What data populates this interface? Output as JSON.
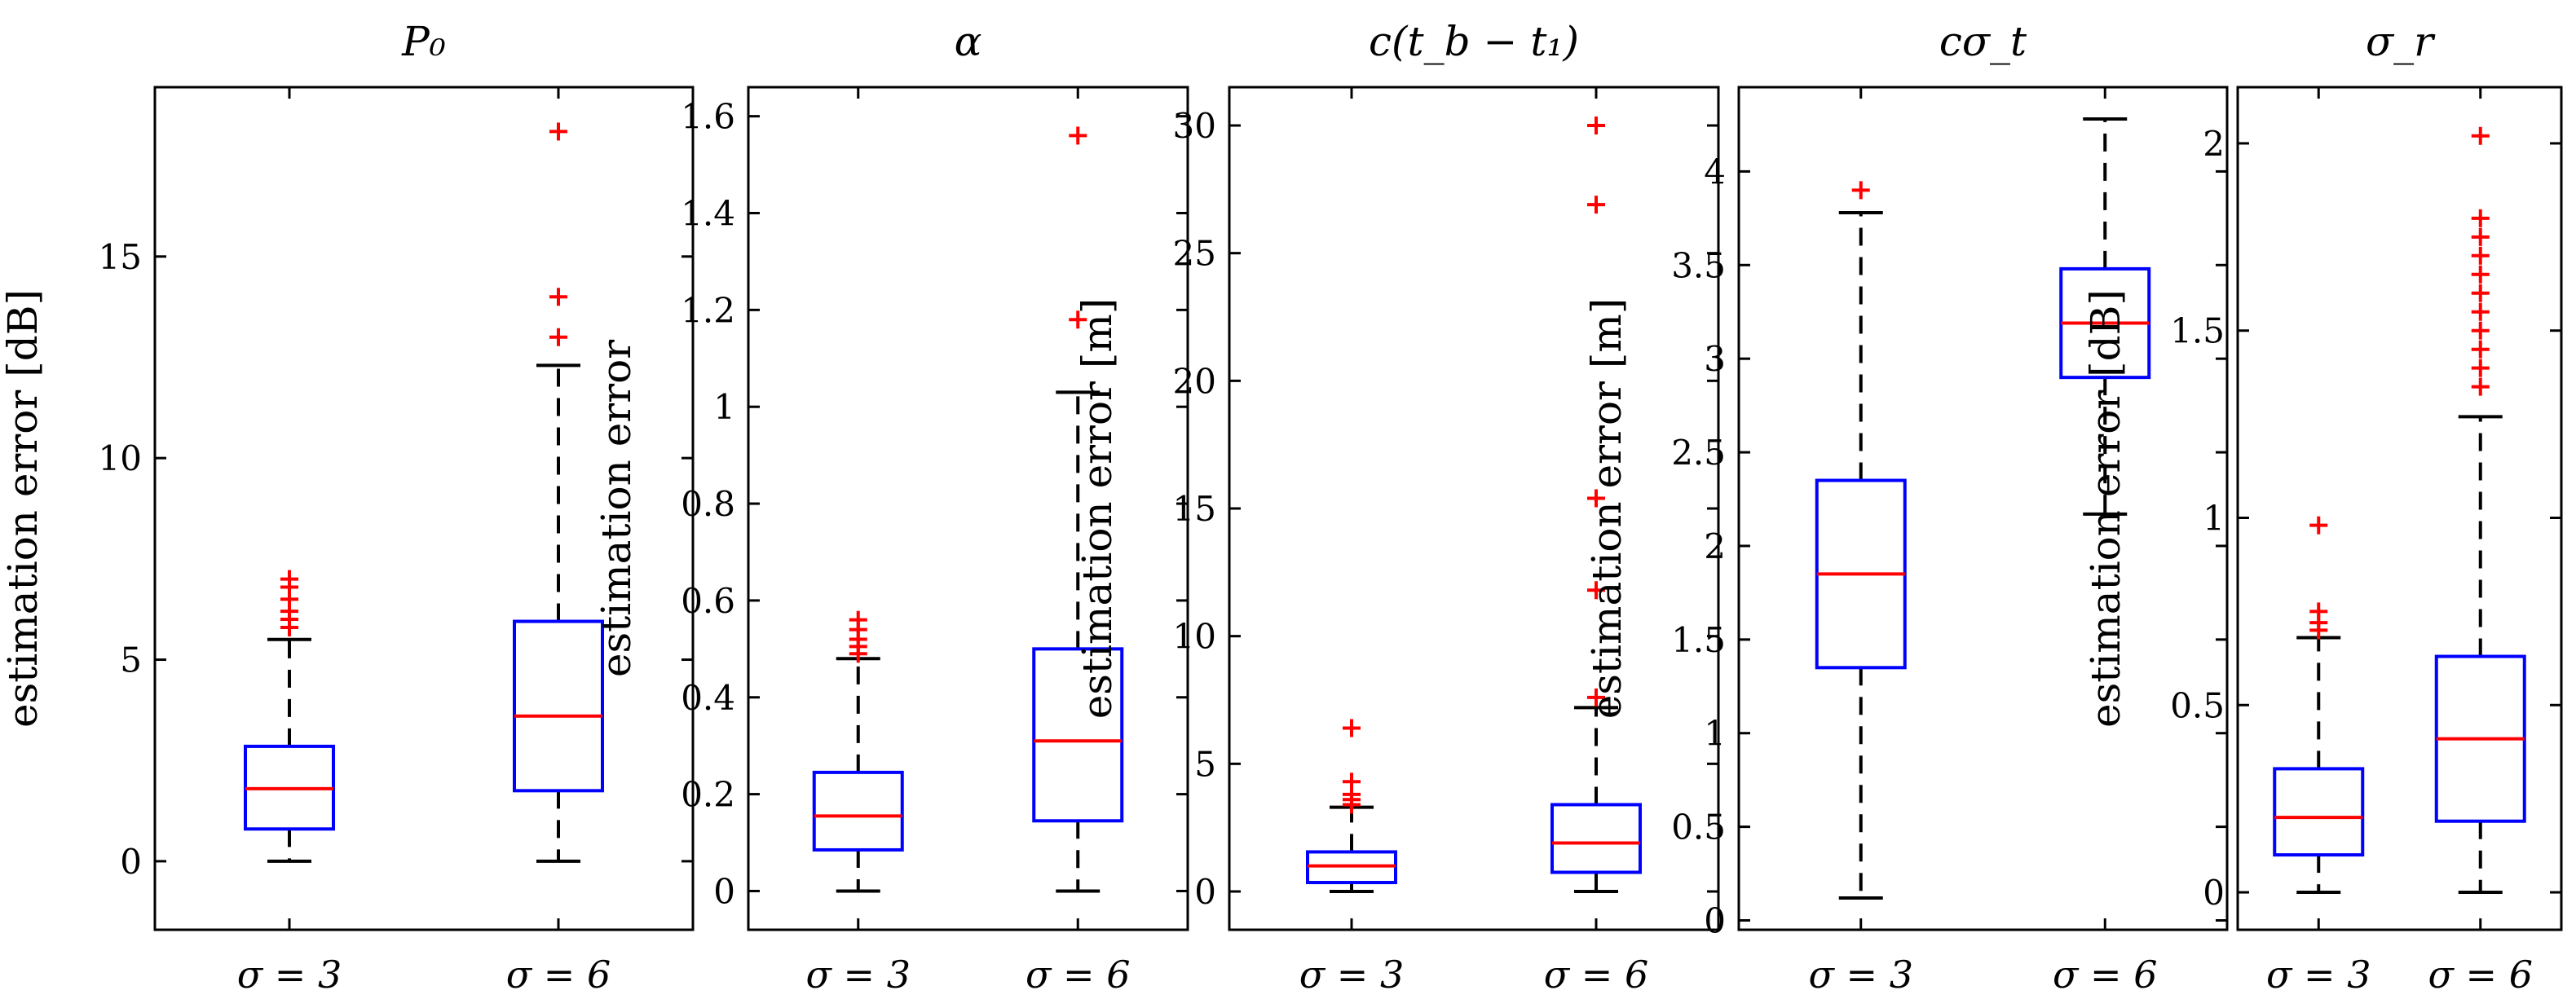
{
  "chart_data": [
    {
      "type": "box",
      "title": "P₀",
      "ylabel": "estimation error [dB]",
      "categories": [
        "σ = 3",
        "σ = 6"
      ],
      "ylim": [
        -1.7,
        19.2
      ],
      "yticks": [
        0,
        5,
        10,
        15
      ],
      "ytick_labels": [
        "0",
        "5",
        "10",
        "15"
      ],
      "boxes": [
        {
          "whisker_low": 0,
          "q1": 0.8,
          "median": 1.8,
          "q3": 2.85,
          "whisker_high": 5.5,
          "outliers": [
            5.8,
            6.0,
            6.2,
            6.5,
            6.8,
            7.0
          ]
        },
        {
          "whisker_low": 0,
          "q1": 1.75,
          "median": 3.6,
          "q3": 5.95,
          "whisker_high": 12.3,
          "outliers": [
            13.0,
            14.0,
            18.1
          ]
        }
      ]
    },
    {
      "type": "box",
      "title": "α",
      "ylabel": "estimation error",
      "categories": [
        "σ = 3",
        "σ = 6"
      ],
      "ylim": [
        -0.08,
        1.66
      ],
      "yticks": [
        0,
        0.2,
        0.4,
        0.6,
        0.8,
        1,
        1.2,
        1.4,
        1.6
      ],
      "ytick_labels": [
        "0",
        "0.2",
        "0.4",
        "0.6",
        "0.8",
        "1",
        "1.2",
        "1.4",
        "1.6"
      ],
      "boxes": [
        {
          "whisker_low": 0,
          "q1": 0.085,
          "median": 0.155,
          "q3": 0.245,
          "whisker_high": 0.48,
          "outliers": [
            0.49,
            0.505,
            0.52,
            0.54,
            0.56
          ]
        },
        {
          "whisker_low": 0,
          "q1": 0.145,
          "median": 0.31,
          "q3": 0.5,
          "whisker_high": 1.03,
          "outliers": [
            1.18,
            1.56
          ]
        }
      ]
    },
    {
      "type": "box",
      "title": "c(t_b − t₁)",
      "ylabel": "estimation error [m]",
      "categories": [
        "σ = 3",
        "σ = 6"
      ],
      "ylim": [
        -1.5,
        31.5
      ],
      "yticks": [
        0,
        5,
        10,
        15,
        20,
        25,
        30
      ],
      "ytick_labels": [
        "0",
        "5",
        "10",
        "15",
        "20",
        "25",
        "30"
      ],
      "boxes": [
        {
          "whisker_low": 0,
          "q1": 0.35,
          "median": 1.0,
          "q3": 1.55,
          "whisker_high": 3.3,
          "outliers": [
            3.4,
            3.6,
            3.8,
            4.3,
            6.4
          ]
        },
        {
          "whisker_low": 0,
          "q1": 0.75,
          "median": 1.9,
          "q3": 3.4,
          "whisker_high": 7.2,
          "outliers": [
            7.6,
            11.8,
            15.4,
            26.9,
            30.0
          ]
        }
      ]
    },
    {
      "type": "box",
      "title": "cσ_t",
      "ylabel": "estimation error [m]",
      "categories": [
        "σ = 3",
        "σ = 6"
      ],
      "ylim": [
        -0.05,
        4.45
      ],
      "yticks": [
        0,
        0.5,
        1,
        1.5,
        2,
        2.5,
        3,
        3.5,
        4
      ],
      "ytick_labels": [
        "0",
        "0.5",
        "1",
        "1.5",
        "2",
        "2.5",
        "3",
        "3.5",
        "4"
      ],
      "boxes": [
        {
          "whisker_low": 0.12,
          "q1": 1.35,
          "median": 1.85,
          "q3": 2.35,
          "whisker_high": 3.78,
          "outliers": [
            3.9
          ]
        },
        {
          "whisker_low": 2.17,
          "q1": 2.9,
          "median": 3.19,
          "q3": 3.48,
          "whisker_high": 4.28,
          "outliers": []
        }
      ]
    },
    {
      "type": "box",
      "title": "σ_r",
      "ylabel": "estimation error [dB]",
      "categories": [
        "σ = 3",
        "σ = 6"
      ],
      "ylim": [
        -0.1,
        2.15
      ],
      "yticks": [
        0,
        0.5,
        1,
        1.5,
        2
      ],
      "ytick_labels": [
        "0",
        "0.5",
        "1",
        "1.5",
        "2"
      ],
      "boxes": [
        {
          "whisker_low": 0,
          "q1": 0.1,
          "median": 0.2,
          "q3": 0.33,
          "whisker_high": 0.68,
          "outliers": [
            0.7,
            0.72,
            0.75,
            0.98
          ]
        },
        {
          "whisker_low": 0,
          "q1": 0.19,
          "median": 0.41,
          "q3": 0.63,
          "whisker_high": 1.27,
          "outliers": [
            1.35,
            1.4,
            1.45,
            1.5,
            1.55,
            1.6,
            1.65,
            1.7,
            1.75,
            1.8,
            2.02
          ]
        }
      ]
    }
  ],
  "colors": {
    "box": "#0000ff",
    "median": "#ff0000",
    "outlier": "#ff0000",
    "whisker": "#000000",
    "axes": "#000000"
  }
}
